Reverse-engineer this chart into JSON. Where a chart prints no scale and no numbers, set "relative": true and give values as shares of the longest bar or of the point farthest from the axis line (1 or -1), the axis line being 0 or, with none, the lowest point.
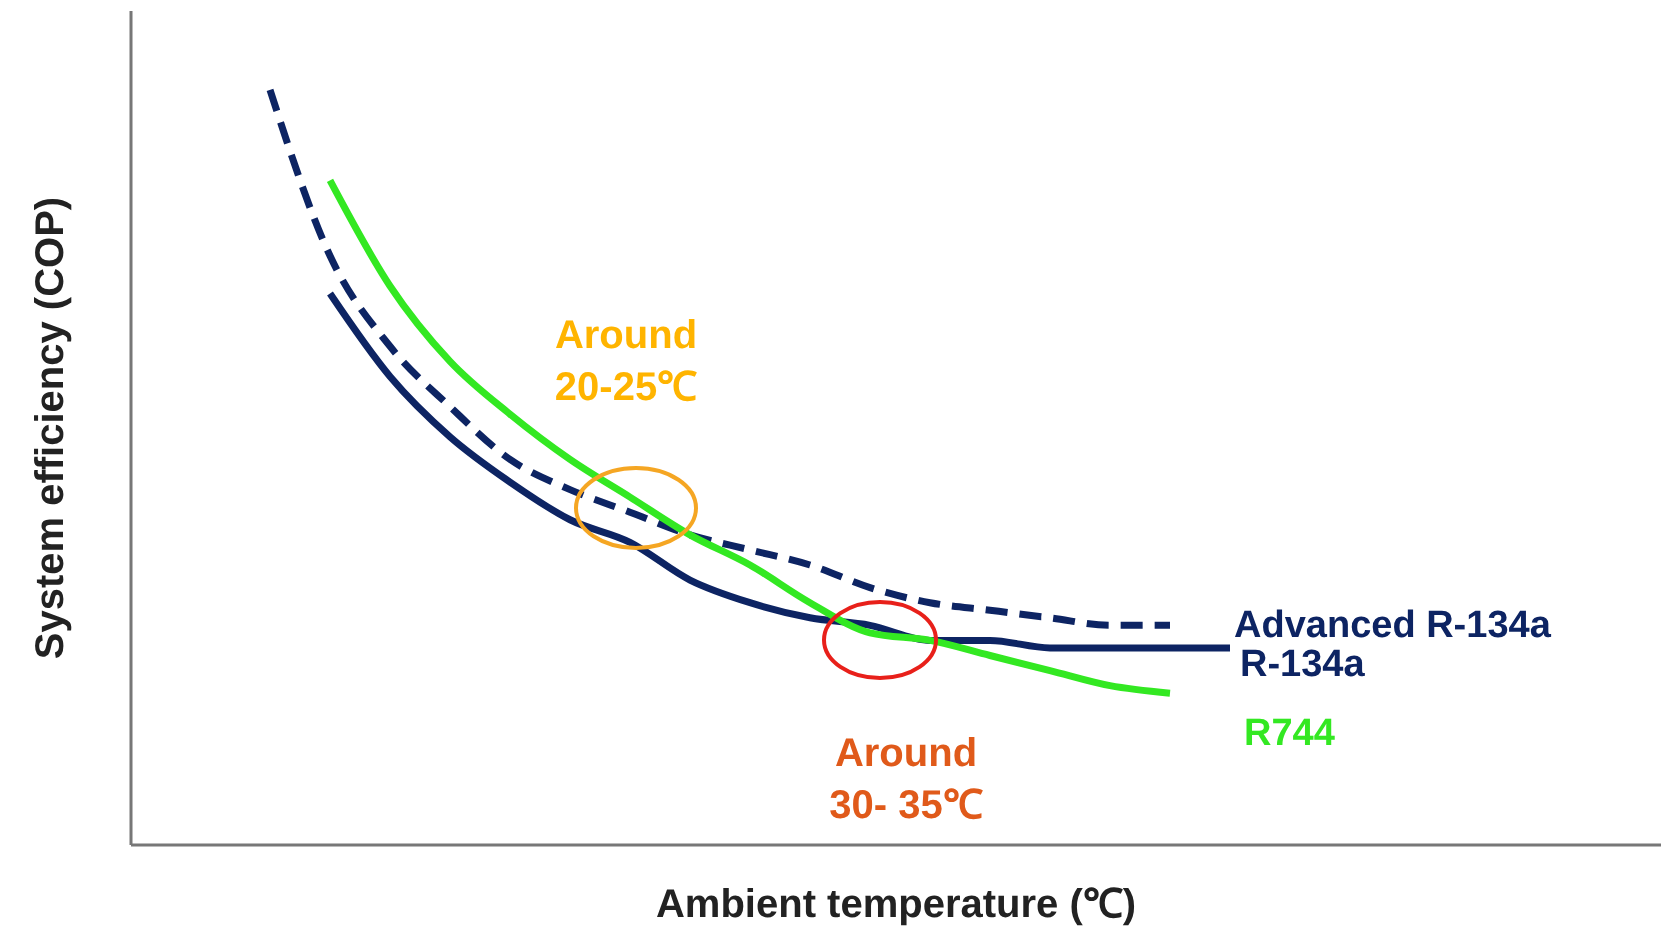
{
  "chart_data": {
    "type": "line",
    "relative": true,
    "xlabel": "Ambient temperature (℃)",
    "ylabel": "System efficiency (COP)",
    "categories": [
      null,
      null,
      null,
      null,
      null,
      null,
      null,
      null,
      null,
      null,
      null,
      null,
      null,
      null,
      null,
      null,
      null
    ],
    "series": [
      {
        "name": "Advanced R-134a",
        "color": "#0d2463",
        "line_style": "dashed",
        "values": [
          1.0,
          0.78,
          0.66,
          0.58,
          0.51,
          0.47,
          0.44,
          0.41,
          0.39,
          0.37,
          0.34,
          0.32,
          0.31,
          0.3,
          0.29,
          0.29,
          null
        ]
      },
      {
        "name": "R-134a",
        "color": "#0d2463",
        "line_style": "solid",
        "values": [
          null,
          0.73,
          0.62,
          0.54,
          0.48,
          0.43,
          0.4,
          0.35,
          0.32,
          0.3,
          0.29,
          0.27,
          0.27,
          0.26,
          0.26,
          0.26,
          0.26
        ]
      },
      {
        "name": "R744",
        "color": "#33e822",
        "line_style": "solid",
        "values": [
          null,
          0.88,
          0.74,
          0.64,
          0.57,
          0.51,
          0.46,
          0.41,
          0.37,
          0.32,
          0.28,
          0.27,
          0.25,
          0.23,
          0.21,
          0.2,
          null
        ]
      }
    ],
    "annotations": [
      "Around 20-25℃",
      "Around 30- 35℃"
    ],
    "grid": false,
    "tick_labels": false
  }
}
